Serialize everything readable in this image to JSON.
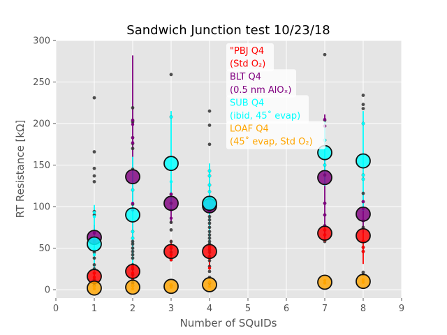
{
  "chart_data": {
    "type": "scatter",
    "title": "Sandwich Junction test 10/23/18",
    "xlabel": "Number of SQuIDs",
    "ylabel": "RT Resistance [kΩ]",
    "xlim": [
      0,
      9
    ],
    "ylim": [
      -10,
      300
    ],
    "x_ticks": [
      0,
      1,
      2,
      3,
      4,
      5,
      6,
      7,
      8,
      9
    ],
    "y_ticks": [
      0,
      50,
      100,
      150,
      200,
      250,
      300
    ],
    "grid": true,
    "legend_placement": "top-center",
    "series": [
      {
        "name_lines": [
          "\"PBJ Q4",
          "(Std O₂)"
        ],
        "color": "#ff0000",
        "means": [
          {
            "x": 1,
            "y": 16
          },
          {
            "x": 2,
            "y": 22
          },
          {
            "x": 3,
            "y": 46
          },
          {
            "x": 4,
            "y": 46
          },
          {
            "x": 7,
            "y": 68
          },
          {
            "x": 8,
            "y": 65
          }
        ],
        "errors": [
          {
            "x": 1,
            "lo": 8,
            "hi": 22
          },
          {
            "x": 2,
            "lo": 12,
            "hi": 33
          },
          {
            "x": 3,
            "lo": 36,
            "hi": 60
          },
          {
            "x": 4,
            "lo": 25,
            "hi": 62
          },
          {
            "x": 7,
            "lo": 58,
            "hi": 78
          },
          {
            "x": 8,
            "lo": 31,
            "hi": 76
          }
        ],
        "points": [
          {
            "x": 1,
            "y": 10
          },
          {
            "x": 1,
            "y": 15
          },
          {
            "x": 1,
            "y": 20
          },
          {
            "x": 2,
            "y": 14
          },
          {
            "x": 2,
            "y": 20
          },
          {
            "x": 2,
            "y": 27
          },
          {
            "x": 3,
            "y": 36
          },
          {
            "x": 3,
            "y": 42
          },
          {
            "x": 3,
            "y": 52
          },
          {
            "x": 4,
            "y": 26
          },
          {
            "x": 4,
            "y": 38
          },
          {
            "x": 4,
            "y": 50
          },
          {
            "x": 7,
            "y": 60
          },
          {
            "x": 7,
            "y": 66
          },
          {
            "x": 7,
            "y": 72
          },
          {
            "x": 8,
            "y": 46
          },
          {
            "x": 8,
            "y": 51
          },
          {
            "x": 8,
            "y": 58
          }
        ]
      },
      {
        "name_lines": [
          "BLT Q4",
          "(0.5 nm AlOₓ)"
        ],
        "color": "#800080",
        "means": [
          {
            "x": 1,
            "y": 63
          },
          {
            "x": 2,
            "y": 136
          },
          {
            "x": 3,
            "y": 104
          },
          {
            "x": 4,
            "y": 101
          },
          {
            "x": 7,
            "y": 135
          },
          {
            "x": 8,
            "y": 91
          }
        ],
        "errors": [
          {
            "x": 1,
            "lo": 48,
            "hi": 78
          },
          {
            "x": 2,
            "lo": 45,
            "hi": 282
          },
          {
            "x": 3,
            "lo": 80,
            "hi": 130
          },
          {
            "x": 4,
            "lo": 75,
            "hi": 130
          },
          {
            "x": 7,
            "lo": 62,
            "hi": 211
          },
          {
            "x": 8,
            "lo": 68,
            "hi": 116
          }
        ],
        "points": [
          {
            "x": 1,
            "y": 68
          },
          {
            "x": 1,
            "y": 60
          },
          {
            "x": 2,
            "y": 204
          },
          {
            "x": 2,
            "y": 199
          },
          {
            "x": 2,
            "y": 183
          },
          {
            "x": 2,
            "y": 177
          },
          {
            "x": 2,
            "y": 104
          },
          {
            "x": 2,
            "y": 96
          },
          {
            "x": 3,
            "y": 115
          },
          {
            "x": 3,
            "y": 96
          },
          {
            "x": 3,
            "y": 86
          },
          {
            "x": 4,
            "y": 110
          },
          {
            "x": 4,
            "y": 95
          },
          {
            "x": 7,
            "y": 205
          },
          {
            "x": 7,
            "y": 197
          },
          {
            "x": 7,
            "y": 104
          },
          {
            "x": 7,
            "y": 90
          },
          {
            "x": 7,
            "y": 77
          },
          {
            "x": 8,
            "y": 106
          },
          {
            "x": 8,
            "y": 98
          },
          {
            "x": 8,
            "y": 83
          }
        ]
      },
      {
        "name_lines": [
          "SUB Q4",
          "(ibid, 45˚ evap)"
        ],
        "color": "#00ffff",
        "means": [
          {
            "x": 1,
            "y": 55
          },
          {
            "x": 2,
            "y": 90
          },
          {
            "x": 3,
            "y": 152
          },
          {
            "x": 4,
            "y": 104
          },
          {
            "x": 7,
            "y": 165
          },
          {
            "x": 8,
            "y": 155
          }
        ],
        "errors": [
          {
            "x": 1,
            "lo": 20,
            "hi": 102
          },
          {
            "x": 2,
            "lo": 30,
            "hi": 160
          },
          {
            "x": 3,
            "lo": 95,
            "hi": 215
          },
          {
            "x": 4,
            "lo": 50,
            "hi": 152
          },
          {
            "x": 7,
            "lo": 125,
            "hi": 205
          },
          {
            "x": 8,
            "lo": 95,
            "hi": 215
          }
        ],
        "points": [
          {
            "x": 1,
            "y": 93
          },
          {
            "x": 1,
            "y": 88
          },
          {
            "x": 1,
            "y": 48
          },
          {
            "x": 1,
            "y": 42
          },
          {
            "x": 2,
            "y": 120
          },
          {
            "x": 2,
            "y": 70
          },
          {
            "x": 2,
            "y": 62
          },
          {
            "x": 3,
            "y": 208
          },
          {
            "x": 3,
            "y": 145
          },
          {
            "x": 3,
            "y": 130
          },
          {
            "x": 4,
            "y": 143
          },
          {
            "x": 4,
            "y": 137
          },
          {
            "x": 4,
            "y": 126
          },
          {
            "x": 4,
            "y": 118
          },
          {
            "x": 7,
            "y": 180
          },
          {
            "x": 7,
            "y": 150
          },
          {
            "x": 8,
            "y": 200
          },
          {
            "x": 8,
            "y": 138
          },
          {
            "x": 8,
            "y": 133
          }
        ]
      },
      {
        "name_lines": [
          "LOAF Q4",
          "(45˚ evap, Std O₂)"
        ],
        "color": "#ffa500",
        "means": [
          {
            "x": 1,
            "y": 2
          },
          {
            "x": 2,
            "y": 3
          },
          {
            "x": 3,
            "y": 4
          },
          {
            "x": 4,
            "y": 6
          },
          {
            "x": 7,
            "y": 9
          },
          {
            "x": 8,
            "y": 10
          }
        ],
        "errors": [
          {
            "x": 1,
            "lo": 0,
            "hi": 6
          },
          {
            "x": 2,
            "lo": 0,
            "hi": 6
          },
          {
            "x": 3,
            "lo": 2,
            "hi": 7
          },
          {
            "x": 4,
            "lo": 3,
            "hi": 12
          },
          {
            "x": 7,
            "lo": 7,
            "hi": 12
          },
          {
            "x": 8,
            "lo": 7,
            "hi": 13
          }
        ],
        "points": [
          {
            "x": 1,
            "y": 1
          },
          {
            "x": 1,
            "y": 4
          },
          {
            "x": 2,
            "y": 1
          },
          {
            "x": 2,
            "y": 5
          },
          {
            "x": 3,
            "y": 3
          },
          {
            "x": 3,
            "y": 6
          },
          {
            "x": 4,
            "y": 4
          },
          {
            "x": 4,
            "y": 9
          },
          {
            "x": 7,
            "y": 8
          },
          {
            "x": 7,
            "y": 11
          },
          {
            "x": 8,
            "y": 9
          },
          {
            "x": 8,
            "y": 12
          }
        ]
      }
    ],
    "black_points": [
      {
        "x": 1,
        "y": 231
      },
      {
        "x": 1,
        "y": 166
      },
      {
        "x": 1,
        "y": 146
      },
      {
        "x": 1,
        "y": 137
      },
      {
        "x": 1,
        "y": 130
      },
      {
        "x": 1,
        "y": 94
      },
      {
        "x": 1,
        "y": 90
      },
      {
        "x": 1,
        "y": 70
      },
      {
        "x": 1,
        "y": 58
      },
      {
        "x": 1,
        "y": 45
      },
      {
        "x": 1,
        "y": 38
      },
      {
        "x": 1,
        "y": 30
      },
      {
        "x": 1,
        "y": 25
      },
      {
        "x": 1,
        "y": 20
      },
      {
        "x": 1,
        "y": 12
      },
      {
        "x": 1,
        "y": 8
      },
      {
        "x": 1,
        "y": 5
      },
      {
        "x": 2,
        "y": 219
      },
      {
        "x": 2,
        "y": 204
      },
      {
        "x": 2,
        "y": 202
      },
      {
        "x": 2,
        "y": 183
      },
      {
        "x": 2,
        "y": 176
      },
      {
        "x": 2,
        "y": 170
      },
      {
        "x": 2,
        "y": 145
      },
      {
        "x": 2,
        "y": 120
      },
      {
        "x": 2,
        "y": 103
      },
      {
        "x": 2,
        "y": 70
      },
      {
        "x": 2,
        "y": 62
      },
      {
        "x": 2,
        "y": 58
      },
      {
        "x": 2,
        "y": 55
      },
      {
        "x": 2,
        "y": 50
      },
      {
        "x": 2,
        "y": 46
      },
      {
        "x": 2,
        "y": 42
      },
      {
        "x": 2,
        "y": 38
      },
      {
        "x": 2,
        "y": 30
      },
      {
        "x": 2,
        "y": 25
      },
      {
        "x": 2,
        "y": 18
      },
      {
        "x": 2,
        "y": 12
      },
      {
        "x": 2,
        "y": 8
      },
      {
        "x": 2,
        "y": 5
      },
      {
        "x": 3,
        "y": 259
      },
      {
        "x": 3,
        "y": 208
      },
      {
        "x": 3,
        "y": 115
      },
      {
        "x": 3,
        "y": 104
      },
      {
        "x": 3,
        "y": 81
      },
      {
        "x": 3,
        "y": 72
      },
      {
        "x": 3,
        "y": 58
      },
      {
        "x": 3,
        "y": 50
      },
      {
        "x": 3,
        "y": 45
      },
      {
        "x": 3,
        "y": 36
      },
      {
        "x": 3,
        "y": 5
      },
      {
        "x": 4,
        "y": 215
      },
      {
        "x": 4,
        "y": 198
      },
      {
        "x": 4,
        "y": 175
      },
      {
        "x": 4,
        "y": 143
      },
      {
        "x": 4,
        "y": 137
      },
      {
        "x": 4,
        "y": 126
      },
      {
        "x": 4,
        "y": 118
      },
      {
        "x": 4,
        "y": 110
      },
      {
        "x": 4,
        "y": 95
      },
      {
        "x": 4,
        "y": 88
      },
      {
        "x": 4,
        "y": 84
      },
      {
        "x": 4,
        "y": 80
      },
      {
        "x": 4,
        "y": 75
      },
      {
        "x": 4,
        "y": 70
      },
      {
        "x": 4,
        "y": 66
      },
      {
        "x": 4,
        "y": 62
      },
      {
        "x": 4,
        "y": 58
      },
      {
        "x": 4,
        "y": 55
      },
      {
        "x": 4,
        "y": 52
      },
      {
        "x": 4,
        "y": 48
      },
      {
        "x": 4,
        "y": 45
      },
      {
        "x": 4,
        "y": 40
      },
      {
        "x": 4,
        "y": 35
      },
      {
        "x": 4,
        "y": 28
      },
      {
        "x": 4,
        "y": 22
      },
      {
        "x": 4,
        "y": 15
      },
      {
        "x": 4,
        "y": 8
      },
      {
        "x": 7,
        "y": 283
      },
      {
        "x": 7,
        "y": 204
      },
      {
        "x": 7,
        "y": 197
      },
      {
        "x": 7,
        "y": 180
      },
      {
        "x": 7,
        "y": 150
      },
      {
        "x": 7,
        "y": 138
      },
      {
        "x": 7,
        "y": 104
      },
      {
        "x": 7,
        "y": 90
      },
      {
        "x": 7,
        "y": 77
      },
      {
        "x": 7,
        "y": 72
      },
      {
        "x": 7,
        "y": 66
      },
      {
        "x": 7,
        "y": 58
      },
      {
        "x": 8,
        "y": 234
      },
      {
        "x": 8,
        "y": 223
      },
      {
        "x": 8,
        "y": 218
      },
      {
        "x": 8,
        "y": 200
      },
      {
        "x": 8,
        "y": 138
      },
      {
        "x": 8,
        "y": 133
      },
      {
        "x": 8,
        "y": 116
      },
      {
        "x": 8,
        "y": 106
      },
      {
        "x": 8,
        "y": 98
      },
      {
        "x": 8,
        "y": 83
      },
      {
        "x": 8,
        "y": 75
      },
      {
        "x": 8,
        "y": 58
      },
      {
        "x": 8,
        "y": 51
      },
      {
        "x": 8,
        "y": 46
      },
      {
        "x": 8,
        "y": 21
      },
      {
        "x": 8,
        "y": 18
      }
    ]
  }
}
